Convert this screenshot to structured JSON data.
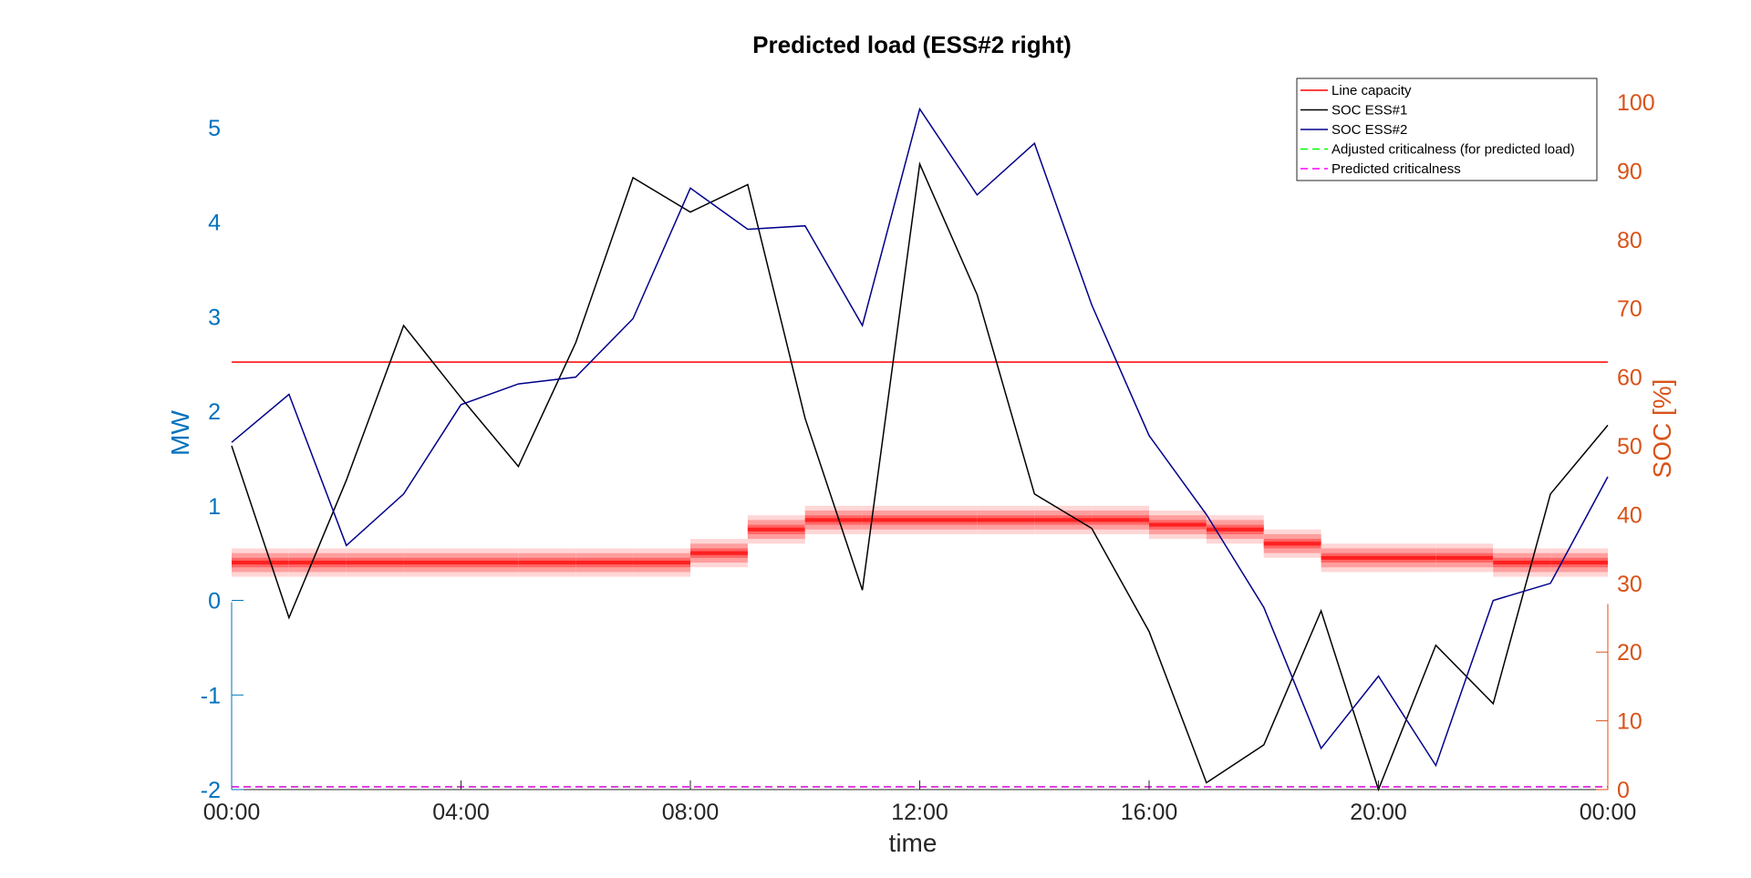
{
  "chart_data": {
    "type": "line",
    "title": "Predicted load (ESS#2 right)",
    "xlabel": "time",
    "ylabel_left": "MW",
    "ylabel_right": "SOC [%]",
    "x_hours": [
      0,
      1,
      2,
      3,
      4,
      5,
      6,
      7,
      8,
      9,
      10,
      11,
      12,
      13,
      14,
      15,
      16,
      17,
      18,
      19,
      20,
      21,
      22,
      23,
      24
    ],
    "x_ticks": [
      0,
      4,
      8,
      12,
      16,
      20,
      24
    ],
    "x_tick_labels": [
      "00:00",
      "04:00",
      "08:00",
      "12:00",
      "16:00",
      "20:00",
      "00:00"
    ],
    "xlim": [
      0,
      24
    ],
    "ylim_left": [
      -2,
      5.5
    ],
    "y_left_ticks": [
      -2,
      -1,
      0,
      1,
      2,
      3,
      4,
      5
    ],
    "ylim_right": [
      0,
      100
    ],
    "y_right_ticks": [
      0,
      10,
      20,
      30,
      40,
      50,
      60,
      70,
      80,
      90,
      100
    ],
    "grid": false,
    "legend_position": "top-right",
    "colors": {
      "left_axis": "#0072BD",
      "right_axis": "#D95319",
      "line_capacity": "#FF0000",
      "soc_ess1": "#000000",
      "soc_ess2": "#00008B",
      "adjusted_criticalness": "#00FF00",
      "predicted_criticalness": "#FF00FF"
    },
    "series": [
      {
        "name": "Line capacity",
        "axis": "left",
        "style": "solid",
        "color": "#FF0000",
        "values": [
          2.52,
          2.52,
          2.52,
          2.52,
          2.52,
          2.52,
          2.52,
          2.52,
          2.52,
          2.52,
          2.52,
          2.52,
          2.52,
          2.52,
          2.52,
          2.52,
          2.52,
          2.52,
          2.52,
          2.52,
          2.52,
          2.52,
          2.52,
          2.52,
          2.52
        ]
      },
      {
        "name": "SOC ESS#1",
        "axis": "right",
        "style": "solid",
        "color": "#000000",
        "values": [
          50,
          25,
          45,
          67.5,
          57,
          47,
          65,
          89,
          84,
          88,
          54,
          29,
          91,
          72,
          43,
          38,
          23,
          1,
          6.5,
          26,
          0,
          21,
          12.5,
          43,
          53
        ]
      },
      {
        "name": "SOC ESS#2",
        "axis": "right",
        "style": "solid",
        "color": "#00008B",
        "values": [
          50.5,
          57.5,
          35.5,
          43,
          56,
          59,
          60,
          68.5,
          87.5,
          81.5,
          82,
          67.5,
          99,
          86.5,
          94,
          70.5,
          51.5,
          40,
          26.5,
          6,
          16.5,
          3.5,
          27.5,
          30,
          45.5
        ]
      },
      {
        "name": "Adjusted criticalness (for predicted load)",
        "axis": "right",
        "style": "dashed",
        "color": "#00FF00",
        "values": [
          0.4,
          0.4,
          0.4,
          0.4,
          0.4,
          0.4,
          0.4,
          0.4,
          0.4,
          0.4,
          0.4,
          0.4,
          0.4,
          0.4,
          0.4,
          0.4,
          0.4,
          0.4,
          0.4,
          0.4,
          0.4,
          0.4,
          0.4,
          0.4,
          0.4
        ]
      },
      {
        "name": "Predicted criticalness",
        "axis": "right",
        "style": "dashed",
        "color": "#FF00FF",
        "values": [
          0.4,
          0.4,
          0.4,
          0.4,
          0.4,
          0.4,
          0.4,
          0.4,
          0.4,
          0.4,
          0.4,
          0.4,
          0.4,
          0.4,
          0.4,
          0.4,
          0.4,
          0.4,
          0.4,
          0.4,
          0.4,
          0.4,
          0.4,
          0.4,
          0.4
        ]
      }
    ],
    "predicted_load_band": {
      "axis": "left",
      "unit": "MW",
      "description_hours": "hourly bins from hour h to h+1",
      "center": [
        0.4,
        0.4,
        0.4,
        0.4,
        0.4,
        0.4,
        0.4,
        0.4,
        0.5,
        0.75,
        0.85,
        0.85,
        0.85,
        0.85,
        0.85,
        0.85,
        0.8,
        0.75,
        0.6,
        0.45,
        0.45,
        0.45,
        0.4,
        0.4
      ],
      "bands": [
        {
          "half_width": 0.15,
          "color": "#FFD6D6",
          "alpha": 1
        },
        {
          "half_width": 0.1,
          "color": "#FF9E9E",
          "alpha": 1
        },
        {
          "half_width": 0.05,
          "color": "#FF6666",
          "alpha": 1
        },
        {
          "half_width": 0.02,
          "color": "#FF2020",
          "alpha": 1
        }
      ]
    }
  }
}
